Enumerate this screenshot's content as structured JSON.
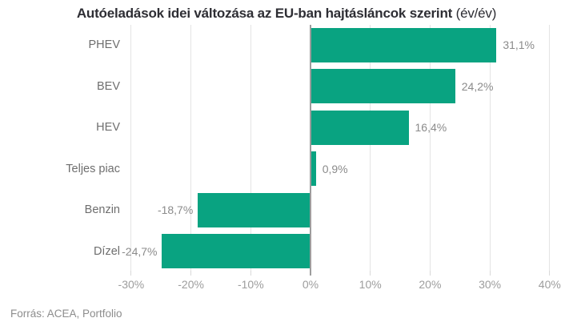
{
  "title": {
    "main": "Autóeladások idei változása az EU-ban hajtásláncok szerint",
    "suffix": "(év/év)"
  },
  "source": "Forrás: ACEA, Portfolio",
  "chart_data": {
    "type": "bar",
    "orientation": "horizontal",
    "title": "Autóeladások idei változása az EU-ban hajtásláncok szerint (év/év)",
    "categories": [
      "PHEV",
      "BEV",
      "HEV",
      "Teljes piac",
      "Benzin",
      "Dízel"
    ],
    "values": [
      31.1,
      24.2,
      16.4,
      0.9,
      -18.7,
      -24.7
    ],
    "value_labels": [
      "31,1%",
      "24,2%",
      "16,4%",
      "0,9%",
      "-18,7%",
      "-24,7%"
    ],
    "xlabel": "",
    "ylabel": "",
    "xlim": [
      -30,
      40
    ],
    "x_ticks": [
      -30,
      -20,
      -10,
      0,
      10,
      20,
      30,
      40
    ],
    "x_tick_labels": [
      "-30%",
      "-20%",
      "-10%",
      "0%",
      "10%",
      "20%",
      "30%",
      "40%"
    ],
    "grid": true,
    "legend": false,
    "source": "Forrás: ACEA, Portfolio",
    "colors": {
      "bar": "#09a381",
      "gridline": "#e4e4e4",
      "zero_line": "#9d9d9d",
      "tick": "#d9d9d9",
      "title": "#2e2e34",
      "category_label": "#6e6e6e",
      "value_label": "#8b8b8b",
      "tick_label": "#9d9d9d"
    }
  }
}
